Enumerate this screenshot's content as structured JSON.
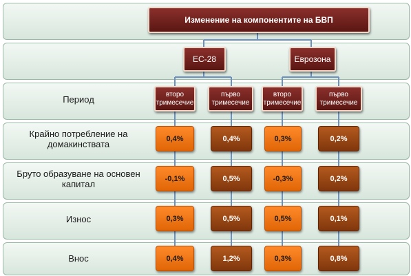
{
  "title": "Изменение на компонентите на БВП",
  "groups": [
    {
      "label": "ЕС-28"
    },
    {
      "label": "Еврозона"
    }
  ],
  "period_row": {
    "label": "Период",
    "columns": [
      "второ тримесечие",
      "първо тримесечие",
      "второ тримесечие",
      "първо тримесечие"
    ]
  },
  "rows": [
    {
      "label": "Крайно потребление на домакинствата",
      "values": [
        "0,4%",
        "0,4%",
        "0,3%",
        "0,2%"
      ]
    },
    {
      "label": "Бруто образуване на основен капитал",
      "values": [
        "-0,1%",
        "0,5%",
        "-0,3%",
        "0,2%"
      ]
    },
    {
      "label": "Износ",
      "values": [
        "0,3%",
        "0,5%",
        "0,5%",
        "0,1%"
      ]
    },
    {
      "label": "Внос",
      "values": [
        "0,4%",
        "1,2%",
        "0,3%",
        "0,8%"
      ]
    }
  ],
  "colors": {
    "header_box": "#6e221d",
    "current_quarter": "#f47a1a",
    "previous_quarter": "#a24a17",
    "connector": "#6b8fbf",
    "band": "#e3efe6"
  }
}
